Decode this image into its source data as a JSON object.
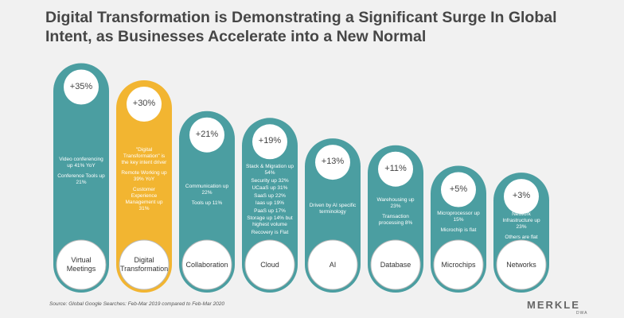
{
  "chart_data": {
    "type": "bar",
    "title": "Digital Transformation is Demonstrating a Significant Surge In Global Intent, as Businesses Accelerate into a New Normal",
    "categories": [
      "Virtual Meetings",
      "Digital Transformation",
      "Collaboration",
      "Cloud",
      "AI",
      "Database",
      "Microchips",
      "Networks"
    ],
    "values": [
      35,
      30,
      21,
      19,
      13,
      11,
      5,
      3
    ],
    "value_labels": [
      "+35%",
      "+30%",
      "+21%",
      "+19%",
      "+13%",
      "+11%",
      "+5%",
      "+3%"
    ],
    "colors": [
      "#4b9ea1",
      "#f2b531",
      "#4b9ea1",
      "#4b9ea1",
      "#4b9ea1",
      "#4b9ea1",
      "#4b9ea1",
      "#4b9ea1"
    ],
    "descriptions": [
      [
        "Video conferencing up 41% YoY",
        "Conference Tools up 21%"
      ],
      [
        "\"Digital Transformation\" is the key intent driver",
        "Remote Working up 39% YoY",
        "Customer Experience Management up 31%"
      ],
      [
        "Communication up 22%",
        "Tools up 11%"
      ],
      [
        "Stack & Migration up 54%",
        "Security up 32%",
        "UCaaS up 31%",
        "SaaS up 22%",
        "Iaas up 19%",
        "PaaS up 17%",
        "Storage up 14% but highest volume",
        "Recovery is Flat"
      ],
      [
        "Driven by AI specific terminology"
      ],
      [
        "Warehousing up 23%",
        "Transaction processing 8%"
      ],
      [
        "Microprocessor up 15%",
        "Microchip is flat"
      ],
      [
        "Network Infrastructure up 23%",
        "Others are flat"
      ]
    ],
    "source": "Source: Global Google Searches: Feb-Mar 2019 compared to Feb-Mar 2020",
    "logo": "MERKLE",
    "logo_sub": "DWA"
  }
}
